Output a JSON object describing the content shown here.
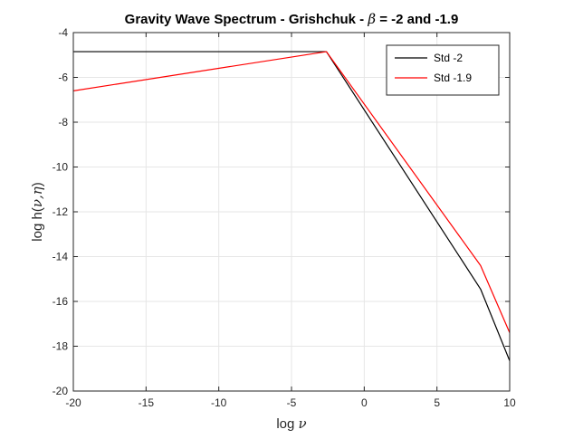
{
  "chart_data": {
    "type": "line",
    "title": "Gravity Wave Spectrum - Grishchuk - β = -2 and -1.9",
    "title_parts": {
      "main": "Gravity Wave Spectrum - Grishchuk - ",
      "symbol": "β",
      "tail": " = -2 and -1.9"
    },
    "xlabel": "log ν",
    "xlabel_parts": {
      "main": "log ",
      "symbol": "ν"
    },
    "ylabel": "log h(ν,η)",
    "ylabel_parts": {
      "main": "log h(",
      "symbol": "ν,η",
      "tail": ")"
    },
    "xlim": [
      -20,
      10
    ],
    "ylim": [
      -20,
      -4
    ],
    "xticks": [
      -20,
      -15,
      -10,
      -5,
      0,
      5,
      10
    ],
    "yticks": [
      -20,
      -18,
      -16,
      -14,
      -12,
      -10,
      -8,
      -6,
      -4
    ],
    "grid": true,
    "legend_position": "top-right",
    "series": [
      {
        "name": "Std -2",
        "color": "#000000",
        "x": [
          -20,
          -2.6,
          8,
          10
        ],
        "y": [
          -4.85,
          -4.85,
          -15.45,
          -18.65
        ]
      },
      {
        "name": "Std -1.9",
        "color": "#ff0000",
        "x": [
          -20,
          -2.6,
          8,
          10
        ],
        "y": [
          -6.6,
          -4.85,
          -14.4,
          -17.4
        ]
      }
    ]
  }
}
